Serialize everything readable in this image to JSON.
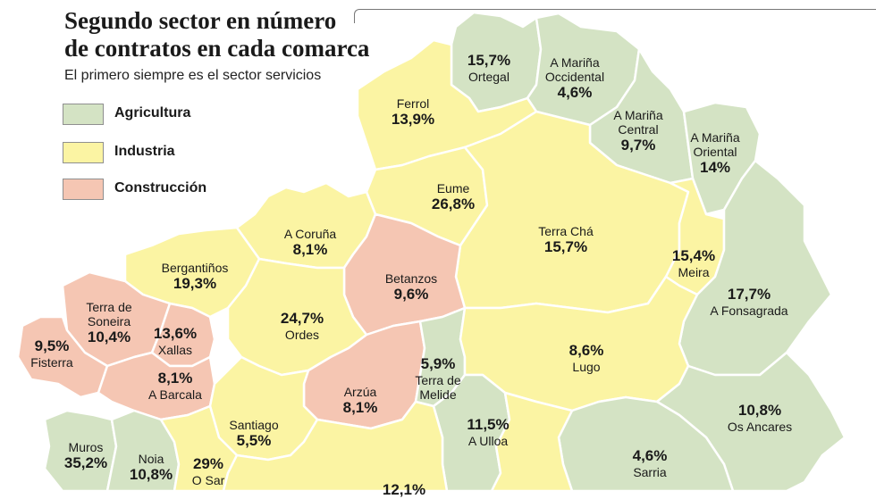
{
  "title_line1": "Segundo sector en número",
  "title_line2": "de contratos en cada comarca",
  "subtitle": "El primero siempre es el sector servicios",
  "legend": [
    {
      "label": "Agricultura",
      "color": "#d4e3c4"
    },
    {
      "label": "Industria",
      "color": "#fbf4a3"
    },
    {
      "label": "Construcción",
      "color": "#f5c6b3"
    }
  ],
  "regions": [
    {
      "name": "Ortegal",
      "value": "15,7%",
      "sector": "Agricultura"
    },
    {
      "name": "A Mariña Occidental",
      "value": "4,6%",
      "sector": "Agricultura"
    },
    {
      "name": "A Mariña Central",
      "value": "9,7%",
      "sector": "Agricultura"
    },
    {
      "name": "A Mariña Oriental",
      "value": "14%",
      "sector": "Agricultura"
    },
    {
      "name": "Ferrol",
      "value": "13,9%",
      "sector": "Industria"
    },
    {
      "name": "Eume",
      "value": "26,8%",
      "sector": "Industria"
    },
    {
      "name": "Terra Chá",
      "value": "15,7%",
      "sector": "Industria"
    },
    {
      "name": "Meira",
      "value": "15,4%",
      "sector": "Industria"
    },
    {
      "name": "A Fonsagrada",
      "value": "17,7%",
      "sector": "Agricultura"
    },
    {
      "name": "A Coruña",
      "value": "8,1%",
      "sector": "Industria"
    },
    {
      "name": "Betanzos",
      "value": "9,6%",
      "sector": "Construcción"
    },
    {
      "name": "Bergantiños",
      "value": "19,3%",
      "sector": "Industria"
    },
    {
      "name": "Ordes",
      "value": "24,7%",
      "sector": "Industria"
    },
    {
      "name": "Terra de Soneira",
      "value": "10,4%",
      "sector": "Construcción"
    },
    {
      "name": "Fisterra",
      "value": "9,5%",
      "sector": "Construcción"
    },
    {
      "name": "Xallas",
      "value": "13,6%",
      "sector": "Construcción"
    },
    {
      "name": "A Barcala",
      "value": "8,1%",
      "sector": "Construcción"
    },
    {
      "name": "Arzúa",
      "value": "8,1%",
      "sector": "Construcción"
    },
    {
      "name": "Terra de Melide",
      "value": "5,9%",
      "sector": "Agricultura"
    },
    {
      "name": "Lugo",
      "value": "8,6%",
      "sector": "Industria"
    },
    {
      "name": "A Ulloa",
      "value": "11,5%",
      "sector": "Agricultura"
    },
    {
      "name": "Os Ancares",
      "value": "10,8%",
      "sector": "Agricultura"
    },
    {
      "name": "Santiago",
      "value": "5,5%",
      "sector": "Industria"
    },
    {
      "name": "Sarria",
      "value": "4,6%",
      "sector": "Agricultura"
    },
    {
      "name": "Muros",
      "value": "35,2%",
      "sector": "Agricultura"
    },
    {
      "name": "Noia",
      "value": "10,8%",
      "sector": "Agricultura"
    },
    {
      "name": "O Sar",
      "value": "29%",
      "sector": "Industria"
    },
    {
      "name": "",
      "value": "12,1%",
      "sector": "Industria"
    }
  ]
}
